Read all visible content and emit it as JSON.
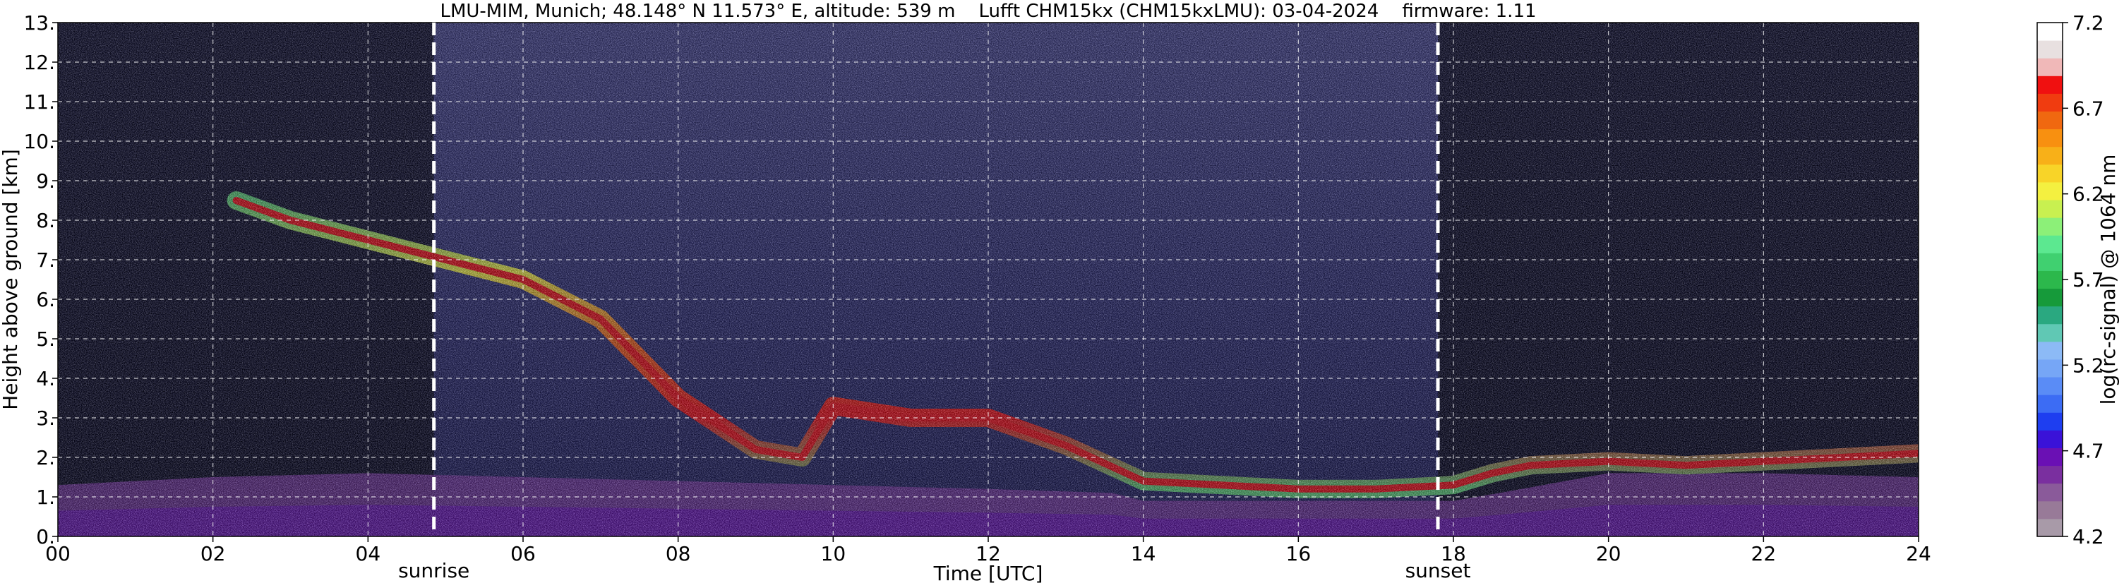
{
  "chart_data": {
    "type": "heatmap",
    "title": "LMU-MIM, Munich; 48.148° N 11.573° E, altitude: 539 m    Lufft CHM15kx (CHM15kxLMU): 03-04-2024    firmware: 1.11",
    "xlabel": "Time [UTC]",
    "ylabel": "Height above ground [km]",
    "x_ticks": [
      "00",
      "02",
      "04",
      "06",
      "08",
      "10",
      "12",
      "14",
      "16",
      "18",
      "20",
      "22",
      "24"
    ],
    "y_ticks": [
      "0.",
      "1.",
      "2.",
      "3.",
      "4.",
      "5.",
      "6.",
      "7.",
      "8.",
      "9.",
      "10.",
      "11.",
      "12.",
      "13."
    ],
    "xlim": [
      0,
      24
    ],
    "ylim": [
      0,
      13
    ],
    "grid": true,
    "colorbar": {
      "label": "log(rc-signal) @ 1064 nm",
      "range": [
        4.2,
        7.2
      ],
      "ticks": [
        "4.2",
        "4.7",
        "5.2",
        "5.7",
        "6.2",
        "6.7",
        "7.2"
      ],
      "colors": [
        "#a89aa8",
        "#987a98",
        "#8a5a9a",
        "#7a2f9f",
        "#6a10b4",
        "#3a12d8",
        "#1e3ef0",
        "#3c6cf4",
        "#5a8cf6",
        "#76a6f6",
        "#8cbaf6",
        "#60c8b4",
        "#2aa880",
        "#169a3a",
        "#2cb84c",
        "#40d070",
        "#5ce890",
        "#8cf078",
        "#c8f050",
        "#f4f040",
        "#f8d428",
        "#f8b018",
        "#f89010",
        "#f06810",
        "#f03c10",
        "#f01010",
        "#f0b8b8",
        "#e8e0e0",
        "#ffffff"
      ]
    },
    "annotations": [
      {
        "text": "sunrise",
        "x": 4.85
      },
      {
        "text": "sunset",
        "x": 17.8
      }
    ],
    "layers": [
      {
        "name": "aerosol boundary layer",
        "x": [
          0,
          2,
          4,
          6,
          8,
          10,
          12,
          13.6,
          14,
          16,
          18,
          18.6,
          20,
          22,
          24
        ],
        "y_bottom": [
          0,
          0,
          0,
          0,
          0,
          0,
          0,
          0,
          0,
          0,
          0,
          0,
          0,
          0,
          0
        ],
        "y_top": [
          1.3,
          1.5,
          1.6,
          1.5,
          1.4,
          1.3,
          1.2,
          1.1,
          0.9,
          0.9,
          0.9,
          1.1,
          1.6,
          1.6,
          1.5
        ]
      },
      {
        "name": "cloud band",
        "x": [
          2.3,
          3,
          4,
          5,
          6,
          7,
          8,
          9,
          9.6,
          10,
          11,
          12,
          13,
          14,
          15,
          16,
          17,
          18,
          18.5,
          19,
          20,
          21,
          22,
          23,
          24
        ],
        "y": [
          8.5,
          8,
          7.5,
          7,
          6.5,
          5.5,
          3.5,
          2.2,
          2.0,
          3.3,
          3.0,
          3.0,
          2.3,
          1.4,
          1.3,
          1.2,
          1.2,
          1.3,
          1.6,
          1.8,
          1.9,
          1.8,
          1.9,
          2.0,
          2.1
        ]
      }
    ]
  }
}
